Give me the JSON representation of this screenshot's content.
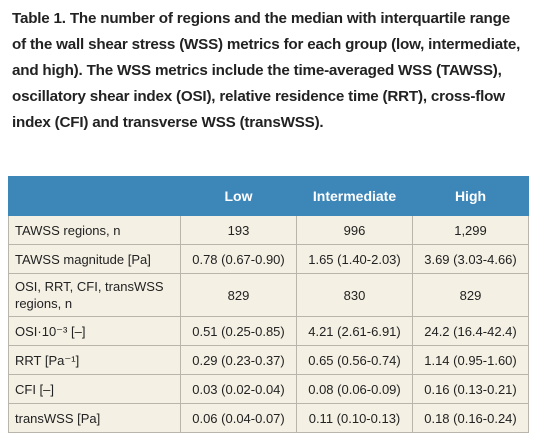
{
  "caption": "Table 1. The number of regions and the median with interquartile range of the wall shear stress (WSS) metrics for each group (low, intermediate, and high). The WSS metrics include the time-averaged WSS (TAWSS), oscillatory shear index (OSI), relative residence time (RRT), cross-flow index (CFI) and transverse WSS (transWSS).",
  "table": {
    "header": [
      "Low",
      "Intermediate",
      "High"
    ],
    "rows": [
      [
        "TAWSS regions, n",
        "193",
        "996",
        "1,299"
      ],
      [
        "TAWSS magnitude [Pa]",
        "0.78 (0.67-0.90)",
        "1.65 (1.40-2.03)",
        "3.69 (3.03-4.66)"
      ],
      [
        "OSI, RRT, CFI, transWSS regions, n",
        "829",
        "830",
        "829"
      ],
      [
        "OSI·10⁻³ [–]",
        "0.51 (0.25-0.85)",
        "4.21 (2.61-6.91)",
        "24.2 (16.4-42.4)"
      ],
      [
        "RRT [Pa⁻¹]",
        "0.29 (0.23-0.37)",
        "0.65 (0.56-0.74)",
        "1.14 (0.95-1.60)"
      ],
      [
        "CFI [–]",
        "0.03 (0.02-0.04)",
        "0.08 (0.06-0.09)",
        "0.16 (0.13-0.21)"
      ],
      [
        "transWSS [Pa]",
        "0.06 (0.04-0.07)",
        "0.11 (0.10-0.13)",
        "0.18 (0.16-0.24)"
      ]
    ]
  }
}
